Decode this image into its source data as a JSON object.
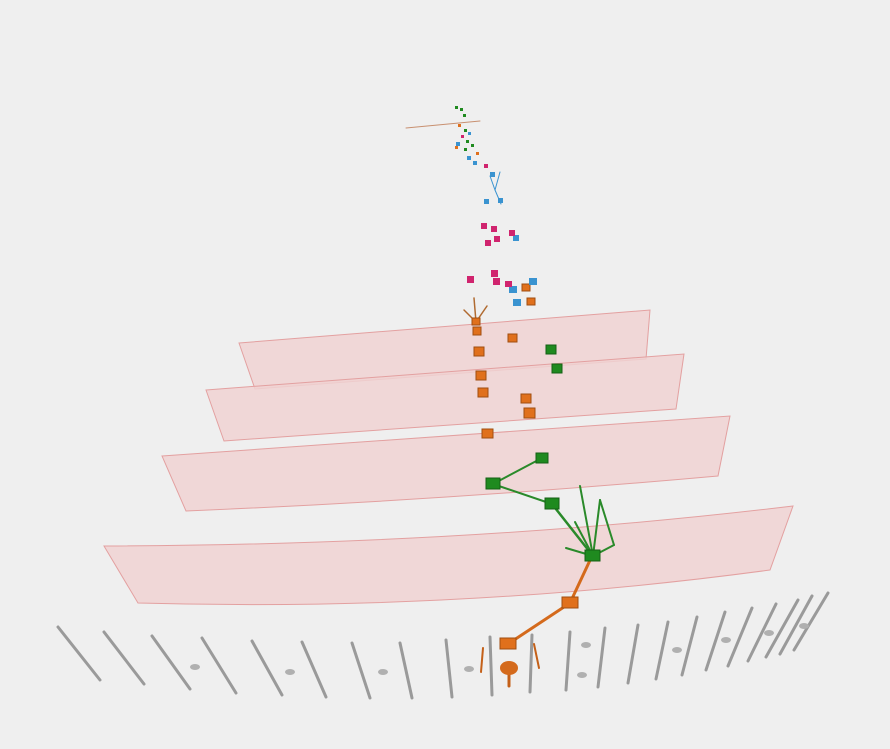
{
  "scene": {
    "background": "#efefef",
    "colors": {
      "orange": "#e0701c",
      "green": "#1f8a1f",
      "blue": "#3a93d0",
      "magenta": "#d0246e",
      "plane_fill": "#f0d2d2",
      "plane_stroke": "#e3a0a0",
      "post": "#9a9a9a"
    },
    "groups": {
      "ground": "ground-rail-posts",
      "planes": "translucent-layer-planes",
      "lineage": "lineage-tree",
      "nodes": "node-cubes"
    }
  }
}
